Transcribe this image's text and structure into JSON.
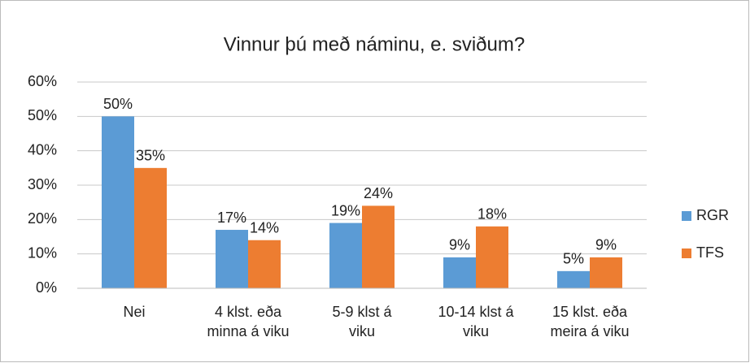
{
  "chart_data": {
    "type": "bar",
    "title": "Vinnur þú með náminu, e. sviðum?",
    "categories": [
      "Nei",
      "4 klst. eða\nminna á viku",
      "5-9 klst á\nviku",
      "10-14 klst á\nviku",
      "15 klst. eða\nmeira á viku"
    ],
    "series": [
      {
        "name": "RGR",
        "color": "#5b9bd5",
        "values": [
          50,
          17,
          19,
          9,
          5
        ],
        "value_labels": [
          "50%",
          "17%",
          "19%",
          "9%",
          "5%"
        ]
      },
      {
        "name": "TFS",
        "color": "#ed7d31",
        "values": [
          35,
          14,
          24,
          18,
          9
        ],
        "value_labels": [
          "35%",
          "14%",
          "24%",
          "18%",
          "9%"
        ]
      }
    ],
    "ylim": [
      0,
      60
    ],
    "yticks": [
      {
        "value": 0,
        "label": "0%"
      },
      {
        "value": 10,
        "label": "10%"
      },
      {
        "value": 20,
        "label": "20%"
      },
      {
        "value": 30,
        "label": "30%"
      },
      {
        "value": 40,
        "label": "40%"
      },
      {
        "value": 50,
        "label": "50%"
      },
      {
        "value": 60,
        "label": "60%"
      }
    ],
    "grid": true,
    "legend": "right"
  }
}
